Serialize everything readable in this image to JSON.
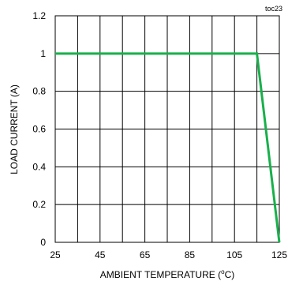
{
  "chart_data": {
    "type": "line",
    "annotation": "toc23",
    "xlabel_main": "AMBIENT TEMPERATURE (",
    "xlabel_super": "o",
    "xlabel_tail": "C)",
    "ylabel": "LOAD CURRENT (A)",
    "xlim": [
      25,
      125
    ],
    "ylim": [
      0,
      1.2
    ],
    "x_ticks": [
      25,
      45,
      65,
      85,
      105,
      125
    ],
    "x_tick_labels": [
      "25",
      "45",
      "65",
      "85",
      "105",
      "125"
    ],
    "y_ticks": [
      0,
      0.2,
      0.4,
      0.6,
      0.8,
      1,
      1.2
    ],
    "y_tick_labels": [
      "0",
      "0.2",
      "0.4",
      "0.6",
      "0.8",
      "1",
      "1.2"
    ],
    "x_grid_values": [
      25,
      35,
      45,
      55,
      65,
      75,
      85,
      95,
      105,
      115,
      125
    ],
    "y_grid_values": [
      0,
      0.2,
      0.4,
      0.6,
      0.8,
      1,
      1.2
    ],
    "grid": true,
    "series": [
      {
        "color": "#18b04b",
        "x": [
          25,
          115,
          125
        ],
        "y": [
          1,
          1,
          0
        ]
      }
    ]
  }
}
